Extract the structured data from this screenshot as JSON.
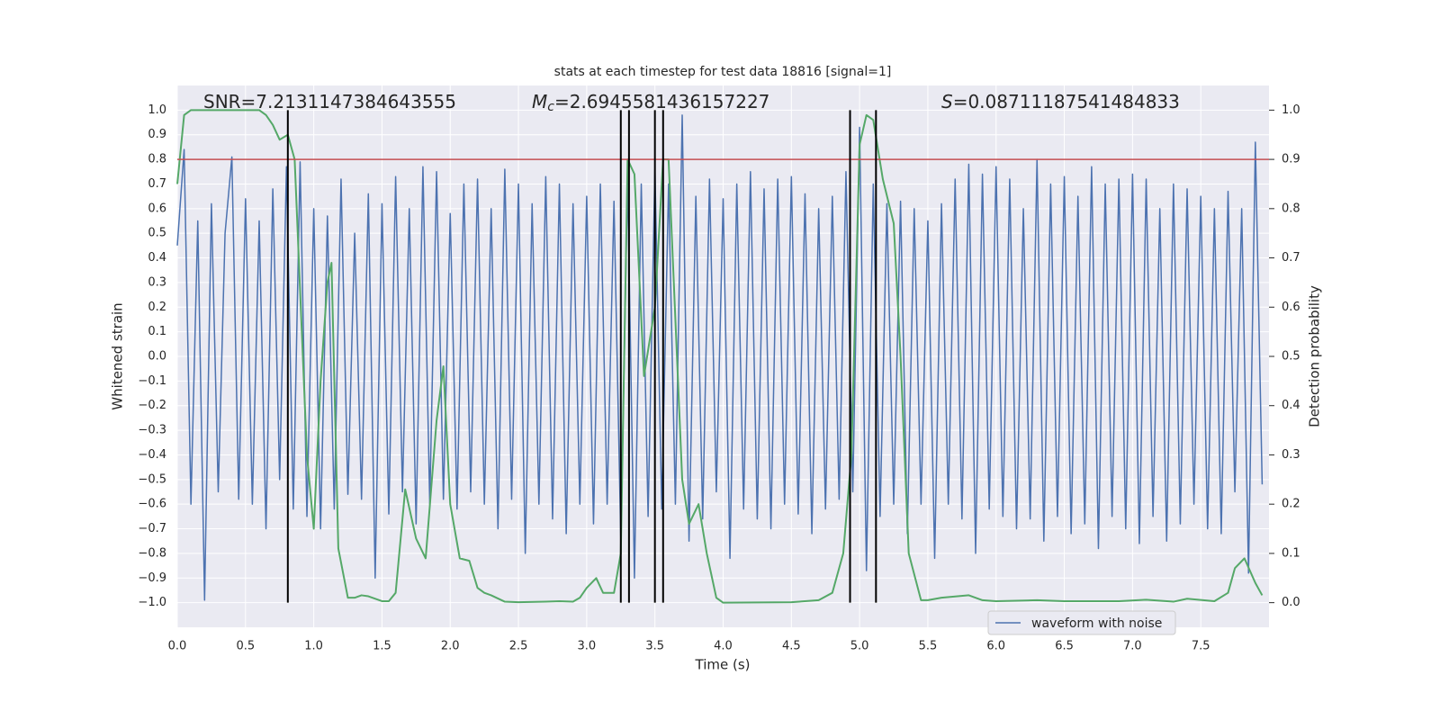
{
  "chart_data": {
    "type": "line",
    "title": "stats at each timestep for test data 18816 [signal=1]",
    "xlabel": "Time (s)",
    "ylabel": "Whitened strain",
    "y2label": "Detection probability",
    "annotations": [
      {
        "text": "SNR=7.2131147384643555"
      },
      {
        "symbol": "M",
        "subscript": "c",
        "text": "=2.6945581436157227"
      },
      {
        "symbol": "S",
        "text": "=0.08711187541484833"
      }
    ],
    "xlim": [
      0,
      8
    ],
    "xticks": [
      {
        "value": 0,
        "label": "0.0"
      },
      0.5,
      {
        "value": 1,
        "label": "1.0"
      },
      1.5,
      {
        "value": 2,
        "label": "2.0"
      },
      2.5,
      {
        "value": 3,
        "label": "3.0"
      },
      3.5,
      {
        "value": 4,
        "label": "4.0"
      },
      4.5,
      {
        "value": 5,
        "label": "5.0"
      },
      5.5,
      {
        "value": 6,
        "label": "6.0"
      },
      6.5,
      {
        "value": 7,
        "label": "7.0"
      },
      7.5
    ],
    "ylim": [
      -1.1,
      1.1
    ],
    "yticks": [
      {
        "value": -1,
        "label": "−1.0"
      },
      {
        "value": -0.9,
        "label": "−0.9"
      },
      {
        "value": -0.8,
        "label": "−0.8"
      },
      {
        "value": -0.7,
        "label": "−0.7"
      },
      {
        "value": -0.6,
        "label": "−0.6"
      },
      {
        "value": -0.5,
        "label": "−0.5"
      },
      {
        "value": -0.4,
        "label": "−0.4"
      },
      {
        "value": -0.3,
        "label": "−0.3"
      },
      {
        "value": -0.2,
        "label": "−0.2"
      },
      {
        "value": -0.1,
        "label": "−0.1"
      },
      {
        "value": 0,
        "label": "0.0"
      },
      0.1,
      0.2,
      0.3,
      0.4,
      0.5,
      0.6,
      0.7,
      0.8,
      0.9,
      {
        "value": 1,
        "label": "1.0"
      }
    ],
    "y2lim": [
      -0.05,
      1.05
    ],
    "y2ticks": [
      {
        "value": 0,
        "label": "0.0"
      },
      0.1,
      0.2,
      0.3,
      0.4,
      0.5,
      0.6,
      0.7,
      0.8,
      0.9,
      {
        "value": 1,
        "label": "1.0"
      }
    ],
    "grid": true,
    "legend": "lower right",
    "series": [
      {
        "name": "waveform with noise",
        "color": "#4c72b0",
        "x": [
          0,
          0.05,
          0.1,
          0.15,
          0.2,
          0.25,
          0.3,
          0.35,
          0.4,
          0.45,
          0.5,
          0.55,
          0.6,
          0.65,
          0.7,
          0.75,
          0.8,
          0.85,
          0.9,
          0.95,
          1,
          1.05,
          1.1,
          1.15,
          1.2,
          1.25,
          1.3,
          1.35,
          1.4,
          1.45,
          1.5,
          1.55,
          1.6,
          1.65,
          1.7,
          1.75,
          1.8,
          1.85,
          1.9,
          1.95,
          2,
          2.05,
          2.1,
          2.15,
          2.2,
          2.25,
          2.3,
          2.35,
          2.4,
          2.45,
          2.5,
          2.55,
          2.6,
          2.65,
          2.7,
          2.75,
          2.8,
          2.85,
          2.9,
          2.95,
          3,
          3.05,
          3.1,
          3.15,
          3.2,
          3.25,
          3.3,
          3.35,
          3.4,
          3.45,
          3.5,
          3.55,
          3.6,
          3.65,
          3.7,
          3.75,
          3.8,
          3.85,
          3.9,
          3.95,
          4,
          4.05,
          4.1,
          4.15,
          4.2,
          4.25,
          4.3,
          4.35,
          4.4,
          4.45,
          4.5,
          4.55,
          4.6,
          4.65,
          4.7,
          4.75,
          4.8,
          4.85,
          4.9,
          4.95,
          5,
          5.05,
          5.1,
          5.15,
          5.2,
          5.25,
          5.3,
          5.35,
          5.4,
          5.45,
          5.5,
          5.55,
          5.6,
          5.65,
          5.7,
          5.75,
          5.8,
          5.85,
          5.9,
          5.95,
          6,
          6.05,
          6.1,
          6.15,
          6.2,
          6.25,
          6.3,
          6.35,
          6.4,
          6.45,
          6.5,
          6.55,
          6.6,
          6.65,
          6.7,
          6.75,
          6.8,
          6.85,
          6.9,
          6.95,
          7,
          7.05,
          7.1,
          7.15,
          7.2,
          7.25,
          7.3,
          7.35,
          7.4,
          7.45,
          7.5,
          7.55,
          7.6,
          7.65,
          7.7,
          7.75,
          7.8,
          7.85,
          7.9,
          7.95
        ],
        "values": [
          0.45,
          0.84,
          -0.6,
          0.55,
          -0.99,
          0.62,
          -0.55,
          0.5,
          0.81,
          -0.58,
          0.64,
          -0.6,
          0.55,
          -0.7,
          0.68,
          -0.5,
          0.77,
          -0.62,
          0.79,
          -0.65,
          0.6,
          -0.7,
          0.57,
          -0.62,
          0.72,
          -0.56,
          0.5,
          -0.58,
          0.66,
          -0.9,
          0.62,
          -0.64,
          0.73,
          -0.55,
          0.6,
          -0.68,
          0.77,
          -0.6,
          0.75,
          -0.58,
          0.58,
          -0.62,
          0.7,
          -0.55,
          0.72,
          -0.6,
          0.6,
          -0.7,
          0.76,
          -0.58,
          0.7,
          -0.8,
          0.62,
          -0.6,
          0.73,
          -0.66,
          0.7,
          -0.72,
          0.62,
          -0.6,
          0.65,
          -0.68,
          0.7,
          -0.6,
          0.63,
          -0.74,
          0.72,
          -0.9,
          0.7,
          -0.65,
          0.76,
          -0.62,
          0.7,
          -0.6,
          0.98,
          -0.75,
          0.65,
          -0.66,
          0.72,
          -0.55,
          0.64,
          -0.82,
          0.7,
          -0.62,
          0.75,
          -0.66,
          0.68,
          -0.7,
          0.72,
          -0.6,
          0.73,
          -0.64,
          0.66,
          -0.72,
          0.6,
          -0.62,
          0.65,
          -0.58,
          0.75,
          -0.55,
          0.93,
          -0.87,
          0.7,
          -0.65,
          0.62,
          -0.6,
          0.63,
          -0.72,
          0.6,
          -0.6,
          0.55,
          -0.82,
          0.62,
          -0.6,
          0.72,
          -0.66,
          0.78,
          -0.8,
          0.74,
          -0.62,
          0.77,
          -0.65,
          0.72,
          -0.7,
          0.6,
          -0.66,
          0.8,
          -0.75,
          0.7,
          -0.65,
          0.73,
          -0.72,
          0.65,
          -0.68,
          0.77,
          -0.78,
          0.7,
          -0.65,
          0.72,
          -0.7,
          0.74,
          -0.76,
          0.72,
          -0.65,
          0.6,
          -0.75,
          0.7,
          -0.68,
          0.68,
          -0.6,
          0.65,
          -0.7,
          0.6,
          -0.72,
          0.67,
          -0.55,
          0.6,
          -0.88,
          0.87,
          -0.52
        ]
      },
      {
        "color": "#55a868",
        "axis": "y2",
        "x": [
          0,
          0.05,
          0.1,
          0.3,
          0.6,
          0.65,
          0.7,
          0.75,
          0.81,
          0.86,
          0.95,
          1,
          1.05,
          1.1,
          1.13,
          1.18,
          1.25,
          1.3,
          1.35,
          1.4,
          1.5,
          1.55,
          1.6,
          1.67,
          1.75,
          1.82,
          1.9,
          1.95,
          2,
          2.07,
          2.14,
          2.2,
          2.25,
          2.3,
          2.4,
          2.5,
          2.7,
          2.8,
          2.9,
          2.95,
          3,
          3.07,
          3.12,
          3.2,
          3.25,
          3.3,
          3.35,
          3.42,
          3.5,
          3.56,
          3.6,
          3.7,
          3.75,
          3.82,
          3.88,
          3.95,
          4,
          4.5,
          4.7,
          4.8,
          4.88,
          4.94,
          5,
          5.05,
          5.1,
          5.17,
          5.25,
          5.3,
          5.36,
          5.45,
          5.5,
          5.6,
          5.8,
          5.9,
          6,
          6.3,
          6.5,
          6.9,
          7.1,
          7.3,
          7.4,
          7.6,
          7.7,
          7.75,
          7.82,
          7.9,
          7.95
        ],
        "values": [
          0.85,
          0.99,
          1,
          1,
          1,
          0.99,
          0.97,
          0.94,
          0.95,
          0.9,
          0.3,
          0.15,
          0.45,
          0.65,
          0.69,
          0.11,
          0.01,
          0.01,
          0.015,
          0.013,
          0.003,
          0.003,
          0.02,
          0.23,
          0.13,
          0.09,
          0.37,
          0.48,
          0.2,
          0.09,
          0.085,
          0.03,
          0.02,
          0.015,
          0.002,
          0.001,
          0.002,
          0.003,
          0.002,
          0.01,
          0.03,
          0.05,
          0.02,
          0.02,
          0.1,
          0.9,
          0.87,
          0.46,
          0.6,
          0.9,
          0.9,
          0.25,
          0.16,
          0.2,
          0.1,
          0.01,
          0,
          0.001,
          0.005,
          0.02,
          0.1,
          0.3,
          0.93,
          0.99,
          0.98,
          0.86,
          0.77,
          0.5,
          0.1,
          0.005,
          0.005,
          0.01,
          0.015,
          0.005,
          0.003,
          0.005,
          0.003,
          0.003,
          0.006,
          0.002,
          0.008,
          0.003,
          0.02,
          0.07,
          0.09,
          0.04,
          0.015
        ]
      }
    ],
    "hlines": [
      {
        "y": 0.8,
        "color": "#c44e52"
      }
    ],
    "vlines": {
      "x": [
        0.81,
        3.25,
        3.31,
        3.5,
        3.56,
        4.93,
        5.12
      ],
      "ymin": -1,
      "ymax": 1,
      "color": "#000000"
    }
  }
}
